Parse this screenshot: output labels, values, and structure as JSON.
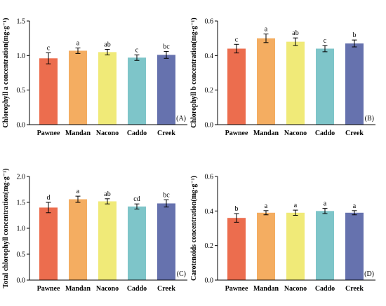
{
  "chart_data": [
    {
      "type": "bar",
      "panel": "(A)",
      "ylabel": "Chlorophyll a concentration(mg·g⁻¹)",
      "categories": [
        "Pawnee",
        "Mandan",
        "Nacono",
        "Caddo",
        "Creek"
      ],
      "values": [
        0.96,
        1.07,
        1.05,
        0.97,
        1.01
      ],
      "errors": [
        0.08,
        0.04,
        0.04,
        0.04,
        0.05
      ],
      "letters": [
        "c",
        "a",
        "ab",
        "c",
        "bc"
      ],
      "ylim": [
        0,
        1.5
      ],
      "yticks": [
        "0.0",
        "0.5",
        "1.0",
        "1.5"
      ],
      "grid": false
    },
    {
      "type": "bar",
      "panel": "(B)",
      "ylabel": "Chlorophyll b concentration(mg·g⁻¹)",
      "categories": [
        "Pawnee",
        "Mandan",
        "Nacono",
        "Caddo",
        "Creek"
      ],
      "values": [
        0.44,
        0.5,
        0.48,
        0.44,
        0.47
      ],
      "errors": [
        0.025,
        0.025,
        0.022,
        0.018,
        0.02
      ],
      "letters": [
        "c",
        "a",
        "ab",
        "c",
        "b"
      ],
      "ylim": [
        0,
        0.6
      ],
      "yticks": [
        "0.0",
        "0.2",
        "0.4",
        "0.6"
      ],
      "grid": false
    },
    {
      "type": "bar",
      "panel": "(C)",
      "ylabel": "Total chlorophyll concentration(mg·g⁻¹)",
      "categories": [
        "Pawnee",
        "Mandan",
        "Nacono",
        "Caddo",
        "Creek"
      ],
      "values": [
        1.4,
        1.56,
        1.52,
        1.42,
        1.48
      ],
      "errors": [
        0.1,
        0.06,
        0.05,
        0.05,
        0.07
      ],
      "letters": [
        "d",
        "a",
        "ab",
        "cd",
        "bc"
      ],
      "ylim": [
        0,
        2.0
      ],
      "yticks": [
        "0.0",
        "0.5",
        "1.0",
        "1.5",
        "2.0"
      ],
      "grid": false
    },
    {
      "type": "bar",
      "panel": "(D)",
      "ylabel": "Carotenoids concentration(mg·g⁻¹)",
      "categories": [
        "Pawnee",
        "Mandan",
        "Nacono",
        "Caddo",
        "Creek"
      ],
      "values": [
        0.36,
        0.39,
        0.39,
        0.4,
        0.39
      ],
      "errors": [
        0.025,
        0.012,
        0.015,
        0.015,
        0.012
      ],
      "letters": [
        "b",
        "a",
        "a",
        "a",
        "a"
      ],
      "ylim": [
        0,
        0.6
      ],
      "yticks": [
        "0.0",
        "0.2",
        "0.4",
        "0.6"
      ],
      "grid": false
    }
  ],
  "colors": [
    "#ec6d4e",
    "#f4ad61",
    "#f0ea78",
    "#7ec5c9",
    "#6672ae"
  ]
}
